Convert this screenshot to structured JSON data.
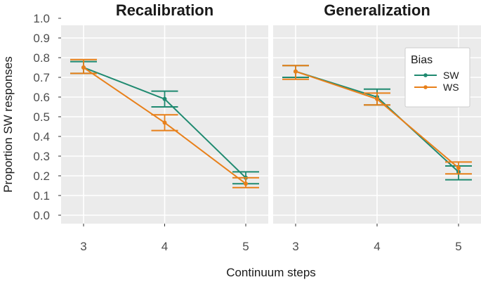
{
  "chart_data": {
    "type": "line",
    "facet_titles": [
      "Recalibration",
      "Generalization"
    ],
    "xlabel": "Continuum steps",
    "ylabel": "Proportion SW responses",
    "x": [
      3,
      4,
      5
    ],
    "x_tick_labels": [
      "3",
      "4",
      "5"
    ],
    "ylim": [
      0.0,
      1.0
    ],
    "y_ticks": [
      0.0,
      0.1,
      0.2,
      0.3,
      0.4,
      0.5,
      0.6,
      0.7,
      0.8,
      0.9,
      1.0
    ],
    "y_tick_labels": [
      "0.0",
      "0.1",
      "0.2",
      "0.3",
      "0.4",
      "0.5",
      "0.6",
      "0.7",
      "0.8",
      "0.9",
      "1.0"
    ],
    "legend": {
      "title": "Bias",
      "position": "top-right",
      "entries": [
        "SW",
        "WS"
      ]
    },
    "colors": {
      "SW": "#1f8a70",
      "WS": "#e8801a"
    },
    "panels": [
      {
        "title": "Recalibration",
        "series": [
          {
            "name": "SW",
            "values": [
              0.75,
              0.59,
              0.19
            ],
            "lower": [
              0.72,
              0.55,
              0.16
            ],
            "upper": [
              0.78,
              0.63,
              0.22
            ]
          },
          {
            "name": "WS",
            "values": [
              0.75,
              0.47,
              0.16
            ],
            "lower": [
              0.72,
              0.43,
              0.14
            ],
            "upper": [
              0.79,
              0.51,
              0.19
            ]
          }
        ]
      },
      {
        "title": "Generalization",
        "series": [
          {
            "name": "SW",
            "values": [
              0.73,
              0.6,
              0.22
            ],
            "lower": [
              0.7,
              0.56,
              0.18
            ],
            "upper": [
              0.76,
              0.64,
              0.25
            ]
          },
          {
            "name": "WS",
            "values": [
              0.73,
              0.59,
              0.24
            ],
            "lower": [
              0.69,
              0.56,
              0.21
            ],
            "upper": [
              0.76,
              0.62,
              0.27
            ]
          }
        ]
      }
    ]
  }
}
